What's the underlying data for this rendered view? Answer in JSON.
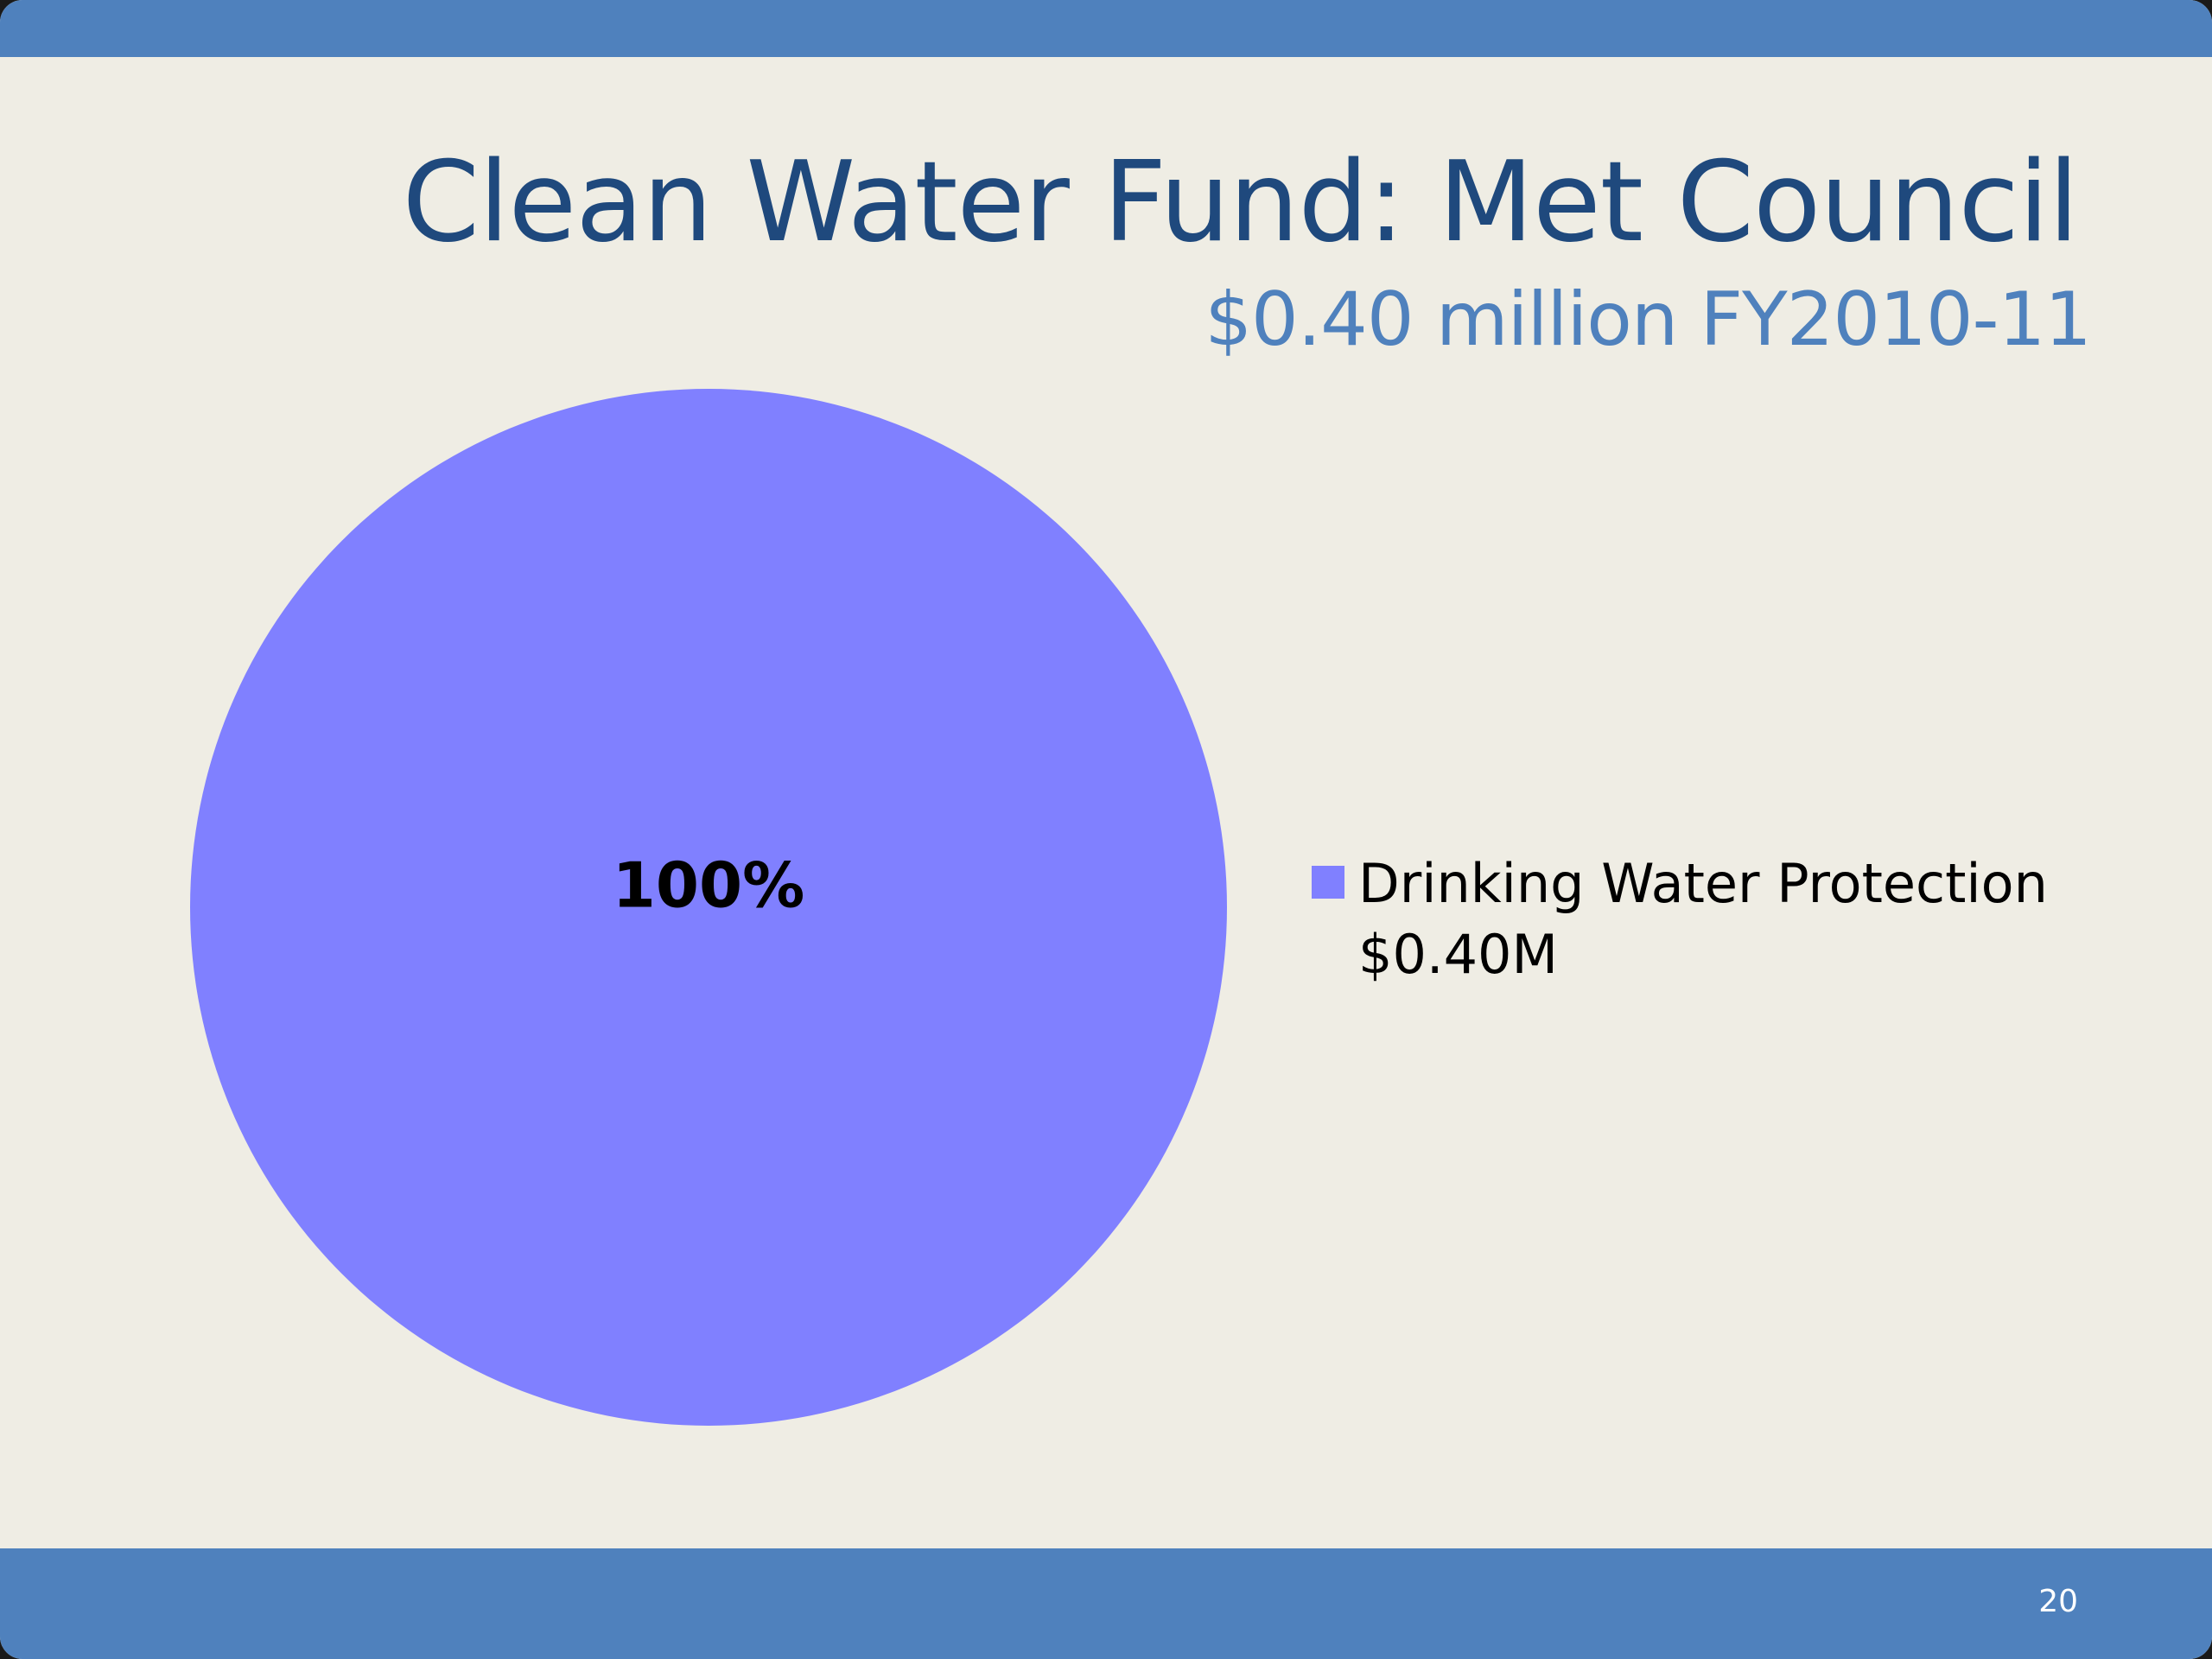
{
  "slide": {
    "title": "Clean Water Fund: Met Council",
    "subtitle": "$0.40 million FY2010-11",
    "page_number": "20",
    "colors": {
      "background": "#efede4",
      "bar": "#4f81bd",
      "title": "#1f497d",
      "subtitle": "#4f81bd"
    }
  },
  "chart_data": {
    "type": "pie",
    "title": "",
    "slices": [
      {
        "label": "Drinking Water Protection",
        "value_label": "$0.40M",
        "value": 0.4,
        "percent_label": "100%",
        "color": "#8080ff"
      }
    ],
    "legend_position": "right"
  }
}
